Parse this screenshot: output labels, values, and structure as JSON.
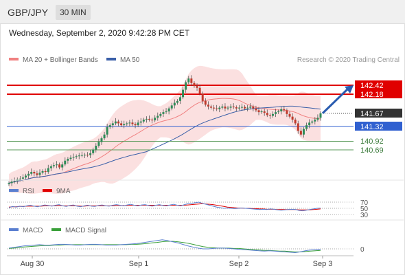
{
  "header": {
    "symbol": "GBP/JPY",
    "timeframe": "30 MIN"
  },
  "datetime": "Wednesday, September 2, 2020 9:42:28 PM CET",
  "legend": {
    "ma20": "MA 20 + Bollinger Bands",
    "ma50": "MA 50",
    "credit": "Research © 2020 Trading Central"
  },
  "rsi_legend": {
    "rsi": "RSI",
    "ma": "9MA"
  },
  "macd_legend": {
    "macd": "MACD",
    "signal": "MACD Signal"
  },
  "colors": {
    "ma20": "#f08080",
    "ma50": "#3a5fa8",
    "resistance": "#e00000",
    "support_blue": "#3060d0",
    "support_green": "#5a9a5a",
    "current": "#333333",
    "bb_fill": "#fbe0e0"
  },
  "chart_data": {
    "type": "candlestick",
    "x_ticks": [
      "Aug 30",
      "Sep 1",
      "Sep 2",
      "Sep 3"
    ],
    "price_levels": [
      {
        "label": "142.42",
        "value": 142.42,
        "kind": "resistance"
      },
      {
        "label": "142.18",
        "value": 142.18,
        "kind": "resistance"
      },
      {
        "label": "141.67",
        "value": 141.67,
        "kind": "current"
      },
      {
        "label": "141.32",
        "value": 141.32,
        "kind": "support_blue"
      },
      {
        "label": "140.92",
        "value": 140.92,
        "kind": "support_green"
      },
      {
        "label": "140.69",
        "value": 140.69,
        "kind": "support_green"
      }
    ],
    "close": [
      139.8,
      139.84,
      139.86,
      139.9,
      139.92,
      139.95,
      140.0,
      140.05,
      140.1,
      140.06,
      140.02,
      140.08,
      140.12,
      140.1,
      140.2,
      140.25,
      140.28,
      140.3,
      140.22,
      140.3,
      140.4,
      140.45,
      140.48,
      140.5,
      140.52,
      140.54,
      140.55,
      140.56,
      140.55,
      140.6,
      140.7,
      140.8,
      140.9,
      141.0,
      141.1,
      141.3,
      141.35,
      141.4,
      141.45,
      141.4,
      141.35,
      141.38,
      141.4,
      141.42,
      141.38,
      141.35,
      141.42,
      141.45,
      141.5,
      141.52,
      141.5,
      141.48,
      141.55,
      141.6,
      141.65,
      141.7,
      141.72,
      141.8,
      141.88,
      141.95,
      142.0,
      142.1,
      142.3,
      142.5,
      142.6,
      142.48,
      142.4,
      142.35,
      142.2,
      142.0,
      141.9,
      141.85,
      141.82,
      141.8,
      141.78,
      141.82,
      141.85,
      141.8,
      141.82,
      141.85,
      141.83,
      141.8,
      141.82,
      141.84,
      141.8,
      141.82,
      141.85,
      141.8,
      141.75,
      141.7,
      141.72,
      141.68,
      141.62,
      141.6,
      141.65,
      141.7,
      141.72,
      141.78,
      141.75,
      141.65,
      141.58,
      141.5,
      141.4,
      141.2,
      141.1,
      141.25,
      141.35,
      141.42,
      141.45,
      141.5,
      141.55,
      141.67
    ],
    "ma20_last": 141.62,
    "ma50_last": 141.7,
    "forecast": {
      "from": 141.67,
      "to": 142.42
    },
    "rsi_levels": [
      "70",
      "50",
      "30"
    ],
    "rsi": [
      52,
      56,
      54,
      57,
      55,
      58,
      60,
      57,
      55,
      58,
      61,
      59,
      57,
      60,
      62,
      58,
      56,
      59,
      61,
      57,
      55,
      58,
      60,
      57,
      56,
      59,
      61,
      58,
      57,
      60,
      62,
      60,
      58,
      61,
      63,
      60,
      58,
      61,
      62,
      59,
      57,
      60,
      62,
      59,
      58,
      61,
      63,
      60,
      58,
      62,
      65,
      66,
      68,
      70,
      66,
      63,
      60,
      57,
      54,
      52,
      50,
      51,
      50,
      49,
      50,
      51,
      50,
      49,
      48,
      47,
      46,
      47,
      46,
      48,
      47,
      45,
      44,
      45,
      46,
      47,
      46,
      43,
      42,
      44,
      46,
      48,
      50,
      51
    ],
    "rsi_ma": [
      54,
      55,
      55,
      56,
      56,
      57,
      57,
      57,
      57,
      57,
      58,
      58,
      58,
      58,
      59,
      58,
      58,
      58,
      58,
      58,
      57,
      57,
      58,
      58,
      58,
      58,
      58,
      58,
      58,
      58,
      59,
      59,
      59,
      59,
      60,
      60,
      60,
      60,
      60,
      60,
      60,
      60,
      60,
      60,
      60,
      60,
      60,
      60,
      60,
      60,
      61,
      62,
      63,
      64,
      65,
      64,
      63,
      62,
      60,
      58,
      56,
      54,
      53,
      52,
      51,
      51,
      50,
      50,
      49,
      49,
      48,
      48,
      47,
      47,
      47,
      46,
      46,
      46,
      46,
      46,
      46,
      45,
      45,
      45,
      45,
      46,
      47,
      48
    ],
    "macd_zero_label": "0",
    "macd": [
      0.02,
      0.04,
      0.06,
      0.08,
      0.09,
      0.1,
      0.11,
      0.1,
      0.1,
      0.11,
      0.12,
      0.12,
      0.11,
      0.1,
      0.1,
      0.11,
      0.12,
      0.12,
      0.11,
      0.1,
      0.1,
      0.1,
      0.11,
      0.12,
      0.13,
      0.14,
      0.16,
      0.18,
      0.2,
      0.22,
      0.24,
      0.22,
      0.19,
      0.16,
      0.12,
      0.08,
      0.05,
      0.02,
      0.0,
      0.0,
      0.01,
      0.02,
      0.02,
      0.01,
      0.0,
      -0.01,
      -0.02,
      -0.03,
      -0.04,
      -0.05,
      -0.06,
      -0.05,
      -0.06,
      -0.07,
      -0.08,
      -0.09,
      -0.1,
      -0.08,
      -0.05,
      -0.03,
      -0.02,
      -0.01
    ],
    "macd_signal": [
      0.01,
      0.02,
      0.03,
      0.05,
      0.06,
      0.07,
      0.08,
      0.09,
      0.09,
      0.1,
      0.1,
      0.11,
      0.11,
      0.11,
      0.11,
      0.11,
      0.11,
      0.11,
      0.11,
      0.11,
      0.11,
      0.11,
      0.11,
      0.11,
      0.12,
      0.12,
      0.13,
      0.14,
      0.16,
      0.17,
      0.19,
      0.2,
      0.2,
      0.19,
      0.17,
      0.15,
      0.12,
      0.09,
      0.06,
      0.04,
      0.03,
      0.02,
      0.02,
      0.02,
      0.01,
      0.01,
      0.0,
      -0.01,
      -0.02,
      -0.03,
      -0.04,
      -0.04,
      -0.05,
      -0.06,
      -0.06,
      -0.07,
      -0.08,
      -0.08,
      -0.07,
      -0.06,
      -0.05,
      -0.04
    ]
  }
}
